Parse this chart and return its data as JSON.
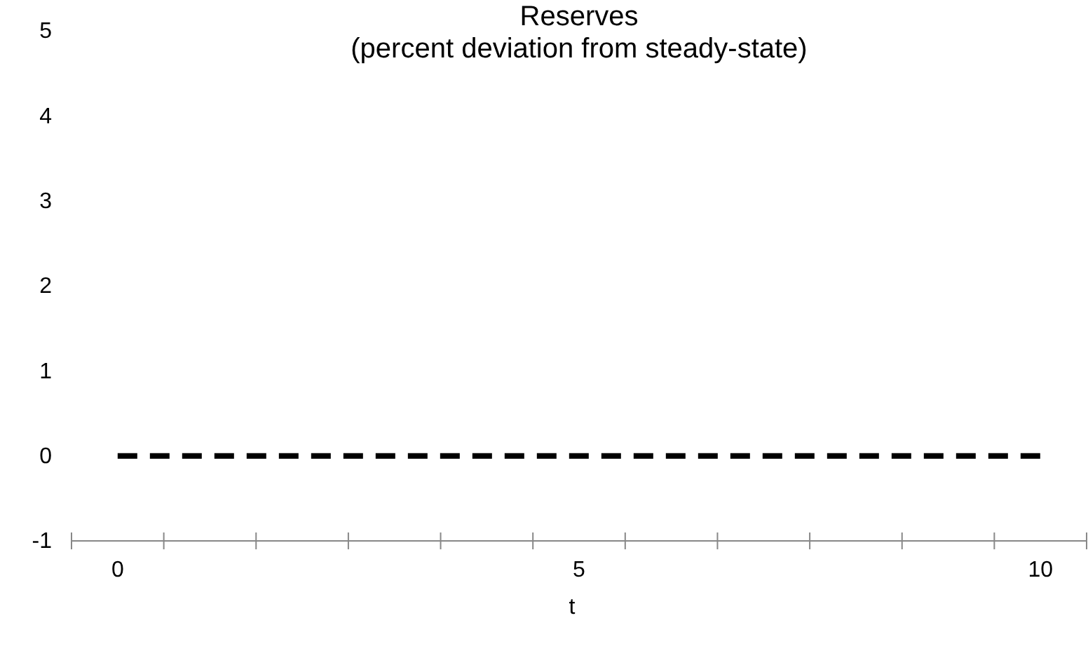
{
  "chart_data": {
    "type": "line",
    "title": "Reserves\n(percent deviation from steady-state)",
    "xlabel": "t",
    "categories": [
      "0",
      null,
      null,
      null,
      null,
      "5",
      null,
      null,
      null,
      null,
      "10"
    ],
    "series": [
      {
        "color": "#000000",
        "values": [
          0,
          0,
          0,
          0,
          0,
          0,
          0,
          0,
          0,
          0,
          0
        ]
      }
    ],
    "ylim": [
      -1,
      5
    ],
    "yticks": [
      -1,
      0,
      1,
      2,
      3,
      4,
      5
    ],
    "line_style": "dashed"
  }
}
